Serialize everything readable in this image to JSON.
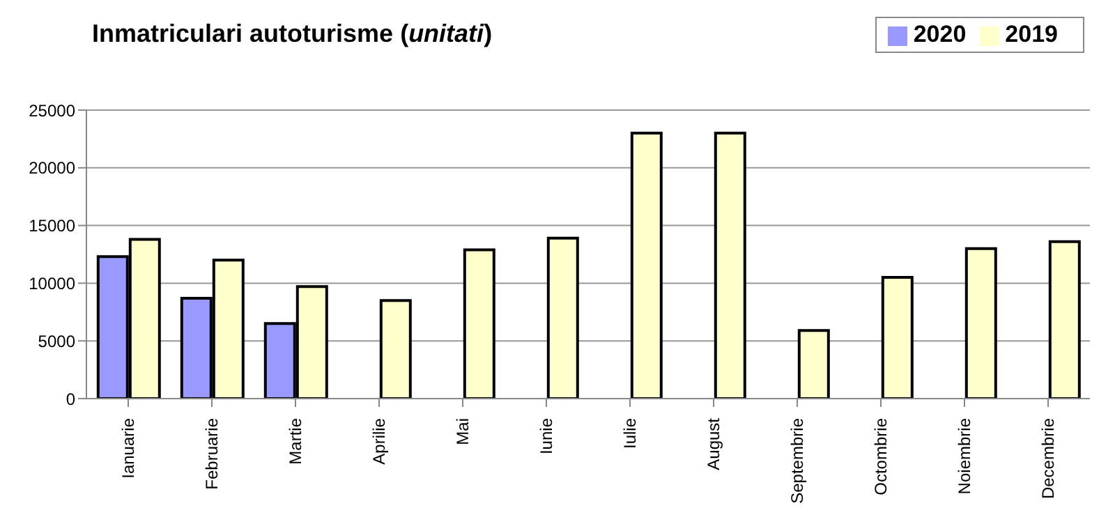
{
  "chart_data": {
    "type": "bar",
    "title": "Inmatriculari autoturisme (unitati)",
    "categories": [
      "Ianuarie",
      "Februarie",
      "Martie",
      "Aprilie",
      "Mai",
      "Iunie",
      "Iulie",
      "August",
      "Septembrie",
      "Octombrie",
      "Noiembrie",
      "Decembrie"
    ],
    "series": [
      {
        "name": "2020",
        "color": "#9999ff",
        "values": [
          12300,
          8700,
          6500,
          null,
          null,
          null,
          null,
          null,
          null,
          null,
          null,
          null
        ]
      },
      {
        "name": "2019",
        "color": "#ffffcc",
        "values": [
          13800,
          12000,
          9700,
          8500,
          12900,
          13900,
          23000,
          23000,
          5900,
          10500,
          13000,
          13600
        ]
      }
    ],
    "ylim": [
      0,
      25000
    ],
    "yticks": [
      0,
      5000,
      10000,
      15000,
      20000,
      25000
    ],
    "grid": "y",
    "legend": "top right"
  }
}
